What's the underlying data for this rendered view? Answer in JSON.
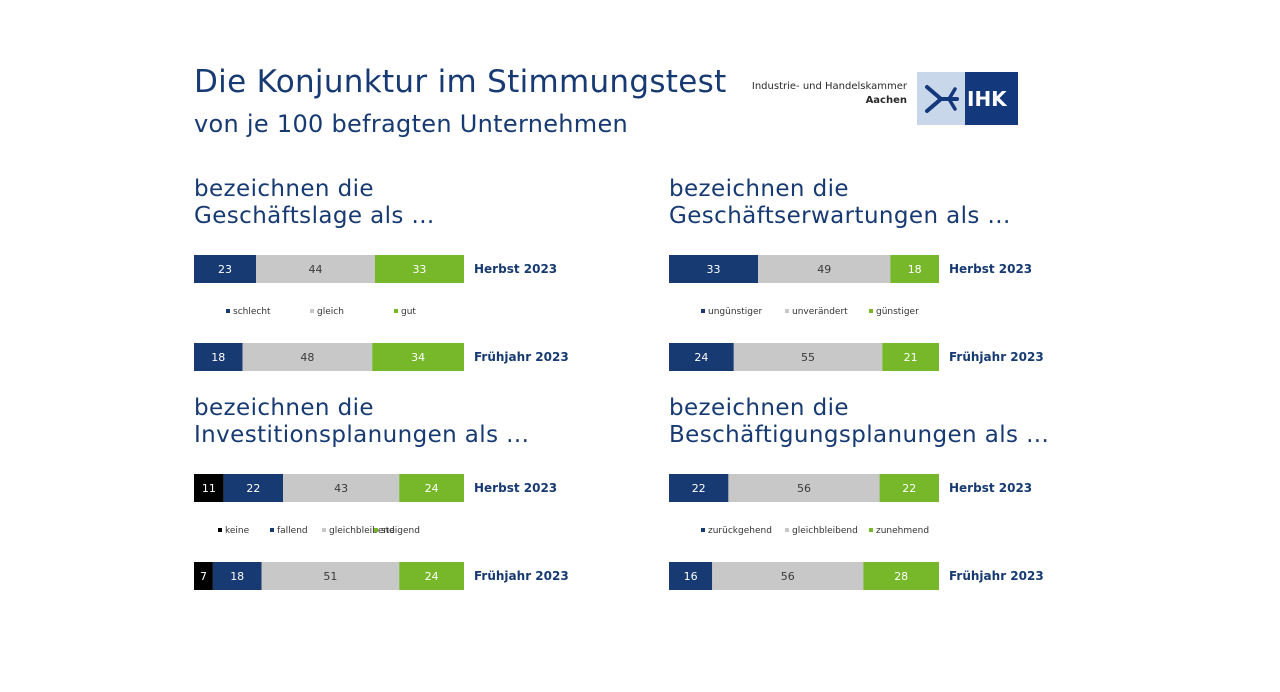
{
  "header": {
    "title": "Die Konjunktur im Stimmungstest",
    "subtitle": "von je 100 befragten Unternehmen",
    "org_line1": "Industrie- und Handelskammer",
    "org_line2": "Aachen",
    "logo_text": "IHK"
  },
  "colors": {
    "navy": "#173a72",
    "grey": "#c8c8c8",
    "green": "#76b82a",
    "black": "#000000"
  },
  "chart_data": [
    {
      "type": "bar",
      "orientation": "horizontal-stacked",
      "title_line1": "bezeichnen die",
      "title_line2": "Geschäftslage als ...",
      "categories": [
        "Herbst 2023",
        "Frühjahr 2023"
      ],
      "series": [
        {
          "name": "schlecht",
          "color": "#173a72",
          "values": [
            23,
            18
          ]
        },
        {
          "name": "gleich",
          "color": "#c8c8c8",
          "values": [
            44,
            48
          ]
        },
        {
          "name": "gut",
          "color": "#76b82a",
          "values": [
            33,
            34
          ]
        }
      ]
    },
    {
      "type": "bar",
      "orientation": "horizontal-stacked",
      "title_line1": "bezeichnen die",
      "title_line2": "Geschäftserwartungen als ...",
      "categories": [
        "Herbst 2023",
        "Frühjahr 2023"
      ],
      "series": [
        {
          "name": "ungünstiger",
          "color": "#173a72",
          "values": [
            33,
            24
          ]
        },
        {
          "name": "unverändert",
          "color": "#c8c8c8",
          "values": [
            49,
            55
          ]
        },
        {
          "name": "günstiger",
          "color": "#76b82a",
          "values": [
            18,
            21
          ]
        }
      ]
    },
    {
      "type": "bar",
      "orientation": "horizontal-stacked",
      "title_line1": "bezeichnen die",
      "title_line2": "Investitionsplanungen als ...",
      "categories": [
        "Herbst 2023",
        "Frühjahr 2023"
      ],
      "series": [
        {
          "name": "keine",
          "color": "#000000",
          "values": [
            11,
            7
          ]
        },
        {
          "name": "fallend",
          "color": "#173a72",
          "values": [
            22,
            18
          ]
        },
        {
          "name": "gleichbleibend",
          "color": "#c8c8c8",
          "values": [
            43,
            51
          ]
        },
        {
          "name": "steigend",
          "color": "#76b82a",
          "values": [
            24,
            24
          ]
        }
      ]
    },
    {
      "type": "bar",
      "orientation": "horizontal-stacked",
      "title_line1": "bezeichnen die",
      "title_line2": "Beschäftigungsplanungen als ...",
      "categories": [
        "Herbst 2023",
        "Frühjahr 2023"
      ],
      "series": [
        {
          "name": "zurückgehend",
          "color": "#173a72",
          "values": [
            22,
            16
          ]
        },
        {
          "name": "gleichbleibend",
          "color": "#c8c8c8",
          "values": [
            56,
            56
          ]
        },
        {
          "name": "zunehmend",
          "color": "#76b82a",
          "values": [
            22,
            28
          ]
        }
      ]
    }
  ]
}
